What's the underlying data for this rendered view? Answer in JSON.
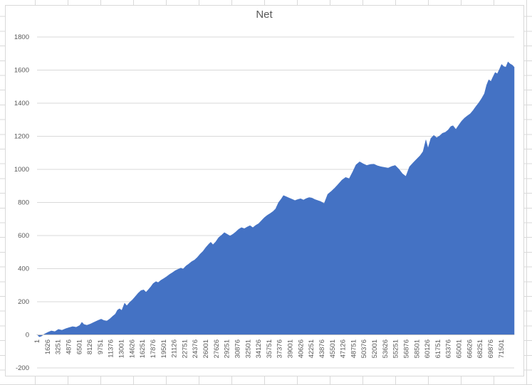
{
  "chart": {
    "title": "Net",
    "colors": {
      "area_fill": "#4472C4",
      "gridline": "#d9d9d9",
      "axis_line": "#c9c9c9",
      "tick_label": "#595959",
      "title": "#595959",
      "chart_border": "#d9d9d9",
      "sheet_gridline": "#d9d9d9"
    }
  },
  "chart_data": {
    "type": "area",
    "title": "Net",
    "legend": "none",
    "grid": "horizontal-major",
    "xlabel": "",
    "ylabel": "",
    "ylim": [
      -200,
      1800
    ],
    "y_tick_step": 200,
    "y_ticks": [
      -200,
      0,
      200,
      400,
      600,
      800,
      1000,
      1200,
      1400,
      1600,
      1800
    ],
    "xlim": [
      1,
      73500
    ],
    "x_tick_values": [
      1,
      1626,
      3251,
      4876,
      6501,
      8126,
      9751,
      11376,
      13001,
      14626,
      16251,
      17876,
      19501,
      21126,
      22751,
      24376,
      26001,
      27626,
      29251,
      30876,
      32501,
      34126,
      35751,
      37376,
      39001,
      40626,
      42251,
      43876,
      45501,
      47126,
      48751,
      50376,
      52001,
      53626,
      55251,
      56876,
      58501,
      60126,
      61751,
      63376,
      65001,
      66626,
      68251,
      69876,
      71501
    ],
    "x_tick_labels": [
      "1",
      "1626",
      "3251",
      "4876",
      "6501",
      "8126",
      "9751",
      "11376",
      "13001",
      "14626",
      "16251",
      "17876",
      "19501",
      "21126",
      "22751",
      "24376",
      "26001",
      "27626",
      "29251",
      "30876",
      "32501",
      "34126",
      "35751",
      "37376",
      "39001",
      "40626",
      "42251",
      "43876",
      "45501",
      "47126",
      "48751",
      "50376",
      "52001",
      "53626",
      "55251",
      "56876",
      "58501",
      "60126",
      "61751",
      "63376",
      "65001",
      "66626",
      "68251",
      "69876",
      "71501"
    ],
    "series": [
      {
        "name": "Net",
        "points": [
          [
            1,
            3
          ],
          [
            330,
            -12
          ],
          [
            660,
            -8
          ],
          [
            1100,
            4
          ],
          [
            1650,
            15
          ],
          [
            2190,
            24
          ],
          [
            2740,
            20
          ],
          [
            3290,
            33
          ],
          [
            3840,
            28
          ],
          [
            4390,
            37
          ],
          [
            4940,
            44
          ],
          [
            5490,
            50
          ],
          [
            6030,
            46
          ],
          [
            6580,
            57
          ],
          [
            6910,
            76
          ],
          [
            7240,
            63
          ],
          [
            7680,
            58
          ],
          [
            8230,
            66
          ],
          [
            8780,
            76
          ],
          [
            9320,
            86
          ],
          [
            9870,
            95
          ],
          [
            10310,
            87
          ],
          [
            10750,
            84
          ],
          [
            11190,
            96
          ],
          [
            11630,
            112
          ],
          [
            12070,
            126
          ],
          [
            12400,
            150
          ],
          [
            12720,
            158
          ],
          [
            13050,
            148
          ],
          [
            13490,
            192
          ],
          [
            13820,
            176
          ],
          [
            14260,
            196
          ],
          [
            14700,
            212
          ],
          [
            15140,
            232
          ],
          [
            15580,
            252
          ],
          [
            16020,
            268
          ],
          [
            16450,
            272
          ],
          [
            16780,
            258
          ],
          [
            17110,
            272
          ],
          [
            17550,
            292
          ],
          [
            17880,
            310
          ],
          [
            18320,
            322
          ],
          [
            18650,
            316
          ],
          [
            19080,
            330
          ],
          [
            19520,
            340
          ],
          [
            19960,
            352
          ],
          [
            20400,
            365
          ],
          [
            20840,
            376
          ],
          [
            21280,
            388
          ],
          [
            21720,
            396
          ],
          [
            22160,
            404
          ],
          [
            22490,
            398
          ],
          [
            22930,
            416
          ],
          [
            23360,
            428
          ],
          [
            23800,
            442
          ],
          [
            24240,
            452
          ],
          [
            24680,
            468
          ],
          [
            25120,
            488
          ],
          [
            25560,
            505
          ],
          [
            26000,
            528
          ],
          [
            26440,
            548
          ],
          [
            26770,
            560
          ],
          [
            27100,
            545
          ],
          [
            27530,
            562
          ],
          [
            27970,
            588
          ],
          [
            28410,
            602
          ],
          [
            28850,
            618
          ],
          [
            29290,
            608
          ],
          [
            29730,
            598
          ],
          [
            30170,
            608
          ],
          [
            30610,
            622
          ],
          [
            31050,
            638
          ],
          [
            31490,
            648
          ],
          [
            31930,
            642
          ],
          [
            32370,
            652
          ],
          [
            32810,
            660
          ],
          [
            33240,
            648
          ],
          [
            33680,
            662
          ],
          [
            34120,
            672
          ],
          [
            34560,
            690
          ],
          [
            35000,
            708
          ],
          [
            35440,
            722
          ],
          [
            35880,
            733
          ],
          [
            36320,
            745
          ],
          [
            36760,
            762
          ],
          [
            37200,
            800
          ],
          [
            37630,
            822
          ],
          [
            37960,
            842
          ],
          [
            38400,
            835
          ],
          [
            38840,
            827
          ],
          [
            39280,
            820
          ],
          [
            39720,
            812
          ],
          [
            40160,
            818
          ],
          [
            40600,
            823
          ],
          [
            41040,
            815
          ],
          [
            41480,
            824
          ],
          [
            41920,
            830
          ],
          [
            42360,
            827
          ],
          [
            42800,
            818
          ],
          [
            43240,
            812
          ],
          [
            43680,
            806
          ],
          [
            44230,
            794
          ],
          [
            44780,
            850
          ],
          [
            45330,
            868
          ],
          [
            45880,
            888
          ],
          [
            46430,
            912
          ],
          [
            46980,
            936
          ],
          [
            47530,
            952
          ],
          [
            48080,
            944
          ],
          [
            48630,
            986
          ],
          [
            49140,
            1028
          ],
          [
            49690,
            1046
          ],
          [
            50240,
            1034
          ],
          [
            50790,
            1024
          ],
          [
            51340,
            1030
          ],
          [
            51890,
            1032
          ],
          [
            52440,
            1022
          ],
          [
            52990,
            1016
          ],
          [
            53530,
            1012
          ],
          [
            54080,
            1008
          ],
          [
            54630,
            1018
          ],
          [
            55180,
            1024
          ],
          [
            55730,
            1002
          ],
          [
            56280,
            974
          ],
          [
            56820,
            958
          ],
          [
            57370,
            1016
          ],
          [
            57920,
            1040
          ],
          [
            58470,
            1062
          ],
          [
            59020,
            1084
          ],
          [
            59460,
            1108
          ],
          [
            59900,
            1178
          ],
          [
            60230,
            1128
          ],
          [
            60670,
            1188
          ],
          [
            61110,
            1206
          ],
          [
            61550,
            1192
          ],
          [
            61990,
            1202
          ],
          [
            62430,
            1218
          ],
          [
            62870,
            1224
          ],
          [
            63310,
            1238
          ],
          [
            63750,
            1260
          ],
          [
            64080,
            1264
          ],
          [
            64520,
            1242
          ],
          [
            64960,
            1268
          ],
          [
            65400,
            1292
          ],
          [
            65840,
            1310
          ],
          [
            66280,
            1324
          ],
          [
            66720,
            1336
          ],
          [
            67160,
            1356
          ],
          [
            67600,
            1380
          ],
          [
            68040,
            1402
          ],
          [
            68480,
            1428
          ],
          [
            68920,
            1458
          ],
          [
            69250,
            1510
          ],
          [
            69580,
            1542
          ],
          [
            69910,
            1532
          ],
          [
            70240,
            1560
          ],
          [
            70570,
            1586
          ],
          [
            70900,
            1578
          ],
          [
            71230,
            1605
          ],
          [
            71560,
            1635
          ],
          [
            71890,
            1622
          ],
          [
            72220,
            1618
          ],
          [
            72550,
            1650
          ],
          [
            72880,
            1638
          ],
          [
            73210,
            1630
          ],
          [
            73500,
            1618
          ]
        ]
      }
    ]
  }
}
